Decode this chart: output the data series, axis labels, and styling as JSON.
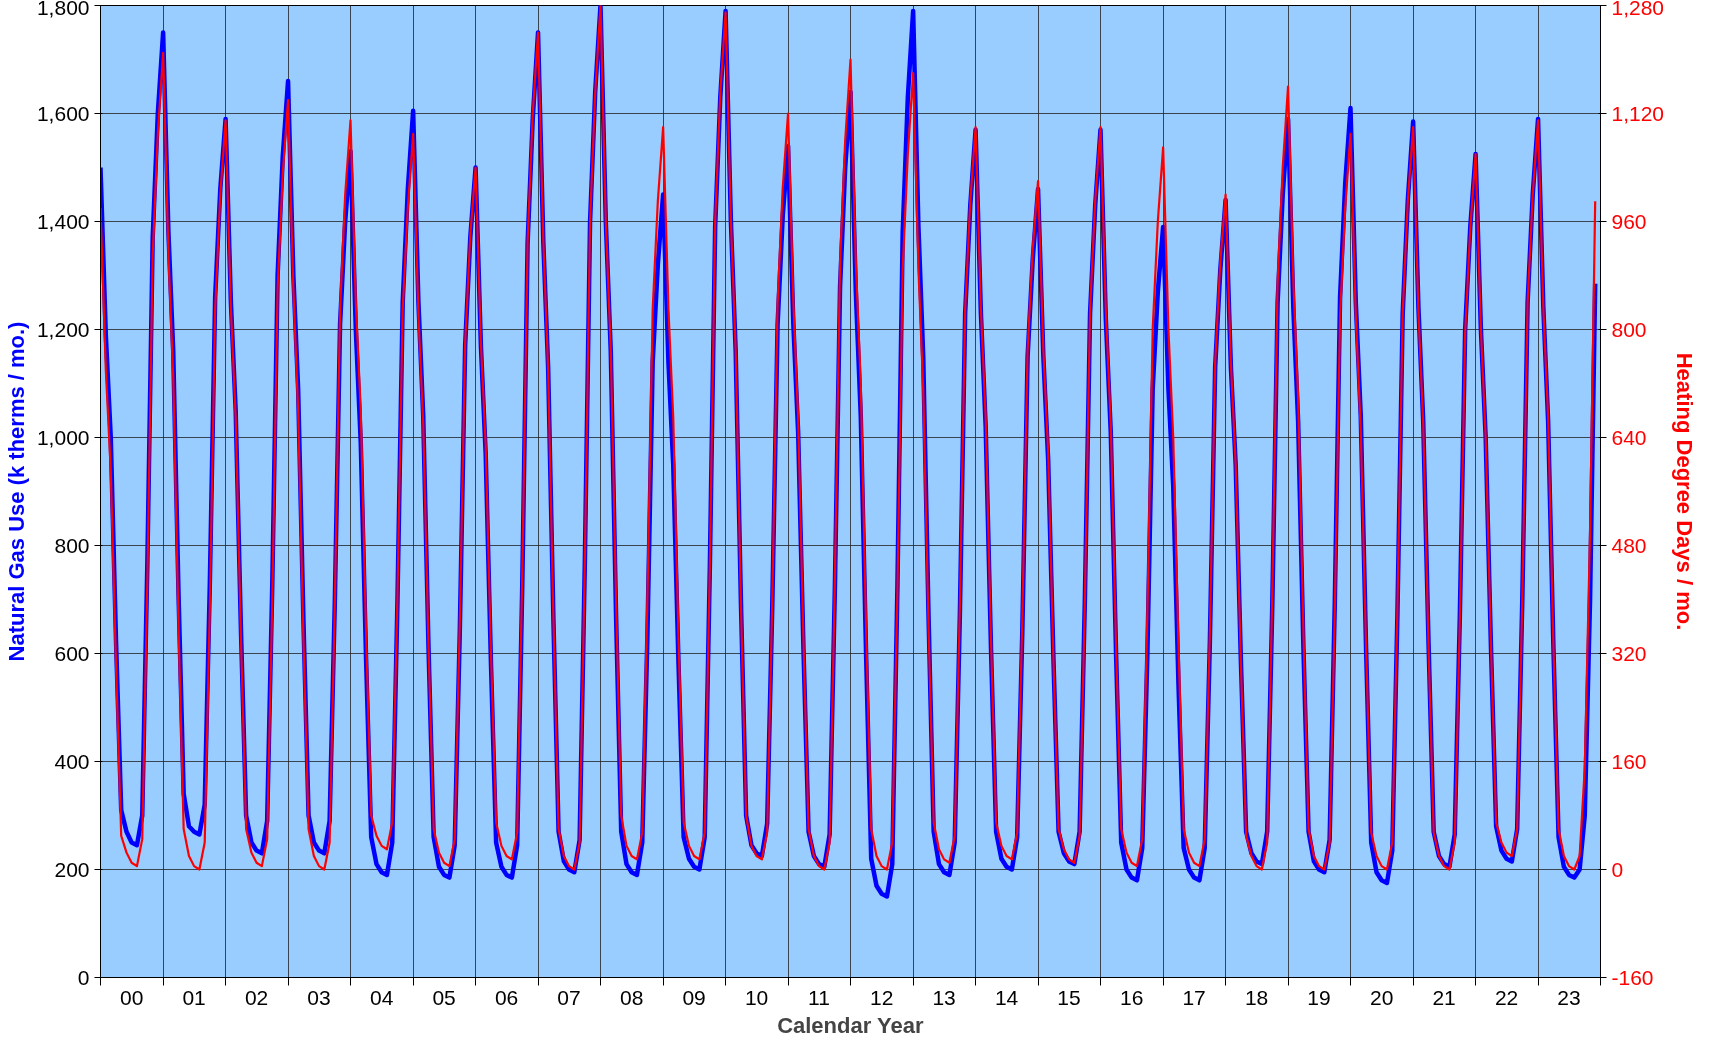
{
  "chart_data": {
    "type": "line",
    "xlabel": "Calendar Year",
    "ylabel": "Natural Gas Use (k therms / mo.)",
    "y2label": "Heating Degree Days / mo.",
    "x": [
      "2000-01",
      "2000-02",
      "2000-03",
      "2000-04",
      "2000-05",
      "2000-06",
      "2000-07",
      "2000-08",
      "2000-09",
      "2000-10",
      "2000-11",
      "2000-12",
      "2001-01",
      "2001-02",
      "2001-03",
      "2001-04",
      "2001-05",
      "2001-06",
      "2001-07",
      "2001-08",
      "2001-09",
      "2001-10",
      "2001-11",
      "2001-12",
      "2002-01",
      "2002-02",
      "2002-03",
      "2002-04",
      "2002-05",
      "2002-06",
      "2002-07",
      "2002-08",
      "2002-09",
      "2002-10",
      "2002-11",
      "2002-12",
      "2003-01",
      "2003-02",
      "2003-03",
      "2003-04",
      "2003-05",
      "2003-06",
      "2003-07",
      "2003-08",
      "2003-09",
      "2003-10",
      "2003-11",
      "2003-12",
      "2004-01",
      "2004-02",
      "2004-03",
      "2004-04",
      "2004-05",
      "2004-06",
      "2004-07",
      "2004-08",
      "2004-09",
      "2004-10",
      "2004-11",
      "2004-12",
      "2005-01",
      "2005-02",
      "2005-03",
      "2005-04",
      "2005-05",
      "2005-06",
      "2005-07",
      "2005-08",
      "2005-09",
      "2005-10",
      "2005-11",
      "2005-12",
      "2006-01",
      "2006-02",
      "2006-03",
      "2006-04",
      "2006-05",
      "2006-06",
      "2006-07",
      "2006-08",
      "2006-09",
      "2006-10",
      "2006-11",
      "2006-12",
      "2007-01",
      "2007-02",
      "2007-03",
      "2007-04",
      "2007-05",
      "2007-06",
      "2007-07",
      "2007-08",
      "2007-09",
      "2007-10",
      "2007-11",
      "2007-12",
      "2008-01",
      "2008-02",
      "2008-03",
      "2008-04",
      "2008-05",
      "2008-06",
      "2008-07",
      "2008-08",
      "2008-09",
      "2008-10",
      "2008-11",
      "2008-12",
      "2009-01",
      "2009-02",
      "2009-03",
      "2009-04",
      "2009-05",
      "2009-06",
      "2009-07",
      "2009-08",
      "2009-09",
      "2009-10",
      "2009-11",
      "2009-12",
      "2010-01",
      "2010-02",
      "2010-03",
      "2010-04",
      "2010-05",
      "2010-06",
      "2010-07",
      "2010-08",
      "2010-09",
      "2010-10",
      "2010-11",
      "2010-12",
      "2011-01",
      "2011-02",
      "2011-03",
      "2011-04",
      "2011-05",
      "2011-06",
      "2011-07",
      "2011-08",
      "2011-09",
      "2011-10",
      "2011-11",
      "2011-12",
      "2012-01",
      "2012-02",
      "2012-03",
      "2012-04",
      "2012-05",
      "2012-06",
      "2012-07",
      "2012-08",
      "2012-09",
      "2012-10",
      "2012-11",
      "2012-12",
      "2013-01",
      "2013-02",
      "2013-03",
      "2013-04",
      "2013-05",
      "2013-06",
      "2013-07",
      "2013-08",
      "2013-09",
      "2013-10",
      "2013-11",
      "2013-12",
      "2014-01",
      "2014-02",
      "2014-03",
      "2014-04",
      "2014-05",
      "2014-06",
      "2014-07",
      "2014-08",
      "2014-09",
      "2014-10",
      "2014-11",
      "2014-12",
      "2015-01",
      "2015-02",
      "2015-03",
      "2015-04",
      "2015-05",
      "2015-06",
      "2015-07",
      "2015-08",
      "2015-09",
      "2015-10",
      "2015-11",
      "2015-12",
      "2016-01",
      "2016-02",
      "2016-03",
      "2016-04",
      "2016-05",
      "2016-06",
      "2016-07",
      "2016-08",
      "2016-09",
      "2016-10",
      "2016-11",
      "2016-12",
      "2017-01",
      "2017-02",
      "2017-03",
      "2017-04",
      "2017-05",
      "2017-06",
      "2017-07",
      "2017-08",
      "2017-09",
      "2017-10",
      "2017-11",
      "2017-12",
      "2018-01",
      "2018-02",
      "2018-03",
      "2018-04",
      "2018-05",
      "2018-06",
      "2018-07",
      "2018-08",
      "2018-09",
      "2018-10",
      "2018-11",
      "2018-12",
      "2019-01",
      "2019-02",
      "2019-03",
      "2019-04",
      "2019-05",
      "2019-06",
      "2019-07",
      "2019-08",
      "2019-09",
      "2019-10",
      "2019-11",
      "2019-12",
      "2020-01",
      "2020-02",
      "2020-03",
      "2020-04",
      "2020-05",
      "2020-06",
      "2020-07",
      "2020-08",
      "2020-09",
      "2020-10",
      "2020-11",
      "2020-12",
      "2021-01",
      "2021-02",
      "2021-03",
      "2021-04",
      "2021-05",
      "2021-06",
      "2021-07",
      "2021-08",
      "2021-09",
      "2021-10",
      "2021-11",
      "2021-12",
      "2022-01",
      "2022-02",
      "2022-03",
      "2022-04",
      "2022-05",
      "2022-06",
      "2022-07",
      "2022-08",
      "2022-09",
      "2022-10",
      "2022-11",
      "2022-12",
      "2023-01",
      "2023-02",
      "2023-03",
      "2023-04",
      "2023-05",
      "2023-06",
      "2023-07",
      "2023-08",
      "2023-09",
      "2023-10",
      "2023-11",
      "2023-12"
    ],
    "series": [
      {
        "color": "#0000ff",
        "axis": "y",
        "values": [
          1500,
          1190,
          1000,
          620,
          310,
          270,
          250,
          245,
          300,
          770,
          1370,
          1600,
          1750,
          1380,
          1160,
          710,
          340,
          280,
          270,
          265,
          320,
          730,
          1260,
          1460,
          1590,
          1250,
          1050,
          640,
          300,
          250,
          235,
          230,
          290,
          730,
          1300,
          1520,
          1660,
          1300,
          1090,
          660,
          300,
          250,
          235,
          230,
          290,
          690,
          1210,
          1400,
          1530,
          1200,
          990,
          590,
          260,
          210,
          195,
          190,
          250,
          690,
          1250,
          1460,
          1605,
          1250,
          1040,
          610,
          260,
          205,
          190,
          185,
          245,
          645,
          1170,
          1370,
          1500,
          1170,
          970,
          580,
          250,
          205,
          190,
          185,
          245,
          730,
          1360,
          1590,
          1750,
          1360,
          1130,
          660,
          270,
          215,
          200,
          195,
          255,
          760,
          1400,
          1640,
          1800,
          1400,
          1160,
          670,
          270,
          210,
          195,
          190,
          250,
          630,
          1140,
          1320,
          1450,
          1140,
          950,
          580,
          260,
          220,
          205,
          200,
          260,
          760,
          1390,
          1630,
          1790,
          1400,
          1160,
          690,
          300,
          245,
          230,
          225,
          285,
          690,
          1210,
          1410,
          1540,
          1210,
          1010,
          610,
          270,
          225,
          210,
          205,
          265,
          710,
          1280,
          1500,
          1640,
          1270,
          1040,
          600,
          220,
          170,
          155,
          150,
          210,
          720,
          1380,
          1630,
          1790,
          1390,
          1150,
          670,
          270,
          210,
          195,
          190,
          250,
          670,
          1230,
          1430,
          1570,
          1230,
          1020,
          610,
          270,
          220,
          205,
          200,
          260,
          640,
          1150,
          1330,
          1460,
          1150,
          960,
          590,
          270,
          230,
          215,
          210,
          270,
          690,
          1230,
          1430,
          1570,
          1220,
          1010,
          600,
          250,
          200,
          185,
          180,
          240,
          600,
          1090,
          1270,
          1390,
          1090,
          910,
          540,
          240,
          200,
          185,
          180,
          240,
          620,
          1130,
          1310,
          1440,
          1130,
          950,
          580,
          270,
          230,
          215,
          210,
          270,
          690,
          1250,
          1450,
          1590,
          1240,
          1030,
          610,
          270,
          215,
          200,
          195,
          255,
          690,
          1260,
          1470,
          1610,
          1250,
          1040,
          610,
          250,
          195,
          180,
          175,
          235,
          670,
          1230,
          1440,
          1585,
          1240,
          1030,
          620,
          270,
          225,
          210,
          205,
          265,
          670,
          1200,
          1390,
          1525,
          1200,
          1000,
          610,
          280,
          235,
          220,
          215,
          275,
          700,
          1250,
          1450,
          1590,
          1240,
          1030,
          610,
          260,
          205,
          190,
          185,
          200,
          300,
          700,
          1285
        ]
      },
      {
        "color": "#ff0000",
        "axis": "y2",
        "values": [
          980,
          740,
          590,
          300,
          50,
          25,
          10,
          5,
          45,
          430,
          910,
          1090,
          1210,
          910,
          730,
          360,
          60,
          20,
          5,
          0,
          40,
          390,
          830,
          1000,
          1110,
          830,
          670,
          340,
          60,
          25,
          10,
          5,
          45,
          400,
          860,
          1030,
          1140,
          860,
          680,
          340,
          60,
          20,
          5,
          0,
          40,
          390,
          830,
          1000,
          1110,
          840,
          680,
          350,
          80,
          50,
          35,
          30,
          70,
          400,
          830,
          980,
          1090,
          820,
          660,
          330,
          60,
          25,
          10,
          5,
          45,
          370,
          780,
          940,
          1040,
          780,
          630,
          320,
          70,
          35,
          20,
          15,
          55,
          440,
          930,
          1120,
          1240,
          930,
          740,
          370,
          60,
          20,
          5,
          0,
          40,
          450,
          960,
          1150,
          1280,
          960,
          770,
          400,
          80,
          35,
          20,
          15,
          55,
          400,
          830,
          990,
          1100,
          830,
          670,
          340,
          70,
          35,
          20,
          15,
          55,
          450,
          960,
          1150,
          1270,
          960,
          770,
          390,
          80,
          35,
          20,
          15,
          55,
          400,
          840,
          1010,
          1120,
          840,
          670,
          340,
          60,
          20,
          5,
          0,
          40,
          420,
          900,
          1080,
          1200,
          900,
          720,
          360,
          60,
          20,
          5,
          0,
          40,
          410,
          890,
          1060,
          1180,
          890,
          710,
          360,
          70,
          30,
          15,
          10,
          50,
          390,
          830,
          990,
          1100,
          830,
          670,
          340,
          70,
          35,
          20,
          15,
          55,
          370,
          770,
          920,
          1020,
          770,
          620,
          310,
          60,
          30,
          15,
          10,
          50,
          390,
          830,
          990,
          1100,
          830,
          660,
          330,
          60,
          25,
          10,
          5,
          45,
          380,
          800,
          960,
          1070,
          800,
          640,
          330,
          60,
          25,
          10,
          5,
          45,
          350,
          750,
          900,
          1000,
          750,
          600,
          300,
          50,
          20,
          5,
          0,
          40,
          410,
          870,
          1040,
          1160,
          870,
          700,
          350,
          60,
          20,
          5,
          0,
          40,
          380,
          820,
          980,
          1090,
          820,
          650,
          330,
          55,
          20,
          5,
          0,
          40,
          385,
          825,
          990,
          1100,
          825,
          660,
          330,
          55,
          20,
          5,
          0,
          40,
          370,
          795,
          950,
          1060,
          800,
          640,
          330,
          70,
          40,
          25,
          20,
          60,
          400,
          840,
          1000,
          1110,
          830,
          670,
          330,
          60,
          20,
          5,
          0,
          20,
          150,
          500,
          990
        ]
      }
    ],
    "xlim": [
      "2000-01",
      "2024-01"
    ],
    "xticks": [
      {
        "value": "2000-07",
        "label": "00"
      },
      {
        "value": "2001-07",
        "label": "01"
      },
      {
        "value": "2002-07",
        "label": "02"
      },
      {
        "value": "2003-07",
        "label": "03"
      },
      {
        "value": "2004-07",
        "label": "04"
      },
      {
        "value": "2005-07",
        "label": "05"
      },
      {
        "value": "2006-07",
        "label": "06"
      },
      {
        "value": "2007-07",
        "label": "07"
      },
      {
        "value": "2008-07",
        "label": "08"
      },
      {
        "value": "2009-07",
        "label": "09"
      },
      {
        "value": "2010-07",
        "label": "10"
      },
      {
        "value": "2011-07",
        "label": "11"
      },
      {
        "value": "2012-07",
        "label": "12"
      },
      {
        "value": "2013-07",
        "label": "13"
      },
      {
        "value": "2014-07",
        "label": "14"
      },
      {
        "value": "2015-07",
        "label": "15"
      },
      {
        "value": "2016-07",
        "label": "16"
      },
      {
        "value": "2017-07",
        "label": "17"
      },
      {
        "value": "2018-07",
        "label": "18"
      },
      {
        "value": "2019-07",
        "label": "19"
      },
      {
        "value": "2020-07",
        "label": "20"
      },
      {
        "value": "2021-07",
        "label": "21"
      },
      {
        "value": "2022-07",
        "label": "22"
      },
      {
        "value": "2023-07",
        "label": "23"
      },
      {
        "value": "2000-01",
        "label": null
      },
      {
        "value": "2001-01",
        "label": null
      },
      {
        "value": "2002-01",
        "label": null
      },
      {
        "value": "2003-01",
        "label": null
      },
      {
        "value": "2004-01",
        "label": null
      },
      {
        "value": "2005-01",
        "label": null
      },
      {
        "value": "2006-01",
        "label": null
      },
      {
        "value": "2007-01",
        "label": null
      },
      {
        "value": "2008-01",
        "label": null
      },
      {
        "value": "2009-01",
        "label": null
      },
      {
        "value": "2010-01",
        "label": null
      },
      {
        "value": "2011-01",
        "label": null
      },
      {
        "value": "2012-01",
        "label": null
      },
      {
        "value": "2013-01",
        "label": null
      },
      {
        "value": "2014-01",
        "label": null
      },
      {
        "value": "2015-01",
        "label": null
      },
      {
        "value": "2016-01",
        "label": null
      },
      {
        "value": "2017-01",
        "label": null
      },
      {
        "value": "2018-01",
        "label": null
      },
      {
        "value": "2019-01",
        "label": null
      },
      {
        "value": "2020-01",
        "label": null
      },
      {
        "value": "2021-01",
        "label": null
      },
      {
        "value": "2022-01",
        "label": null
      },
      {
        "value": "2023-01",
        "label": null
      },
      {
        "value": "2024-01",
        "label": null
      }
    ],
    "ylim": [
      0,
      1800
    ],
    "yticks": [
      0,
      200,
      400,
      600,
      800,
      {
        "value": 1000,
        "label": "1,000"
      },
      {
        "value": 1200,
        "label": "1,200"
      },
      {
        "value": 1400,
        "label": "1,400"
      },
      {
        "value": 1600,
        "label": "1,600"
      },
      {
        "value": 1800,
        "label": "1,800"
      }
    ],
    "y2lim": [
      -160,
      1280
    ],
    "y2ticks": [
      -160,
      0,
      160,
      320,
      480,
      640,
      800,
      960,
      {
        "value": 1120,
        "label": "1,120"
      },
      {
        "value": 1280,
        "label": "1,280"
      }
    ],
    "grid": true
  }
}
